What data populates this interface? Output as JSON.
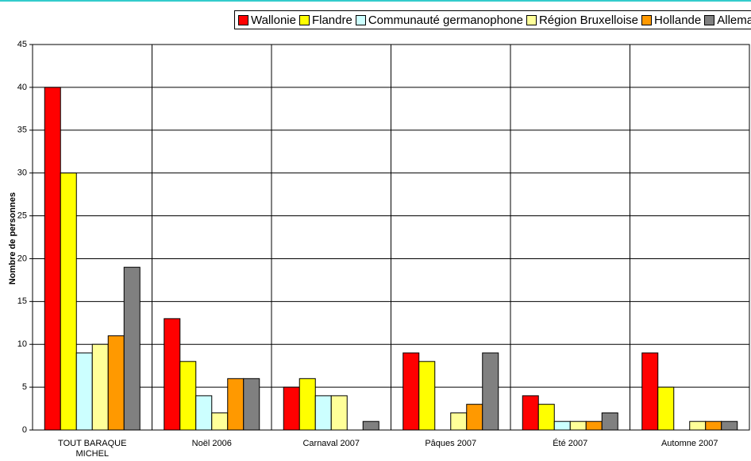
{
  "chart_data": {
    "type": "bar",
    "y_label": "Nombre de personnes",
    "categories": [
      "TOUT BARAQUE MICHEL",
      "Noël 2006",
      "Carnaval 2007",
      "Pâques 2007",
      "Été 2007",
      "Automne 2007"
    ],
    "series": [
      {
        "name": "Wallonie",
        "color": "#ff0000",
        "values": [
          40,
          13,
          5,
          9,
          4,
          9
        ]
      },
      {
        "name": "Flandre",
        "color": "#ffff00",
        "values": [
          30,
          8,
          6,
          8,
          3,
          5
        ]
      },
      {
        "name": "Communauté germanophone",
        "color": "#ccffff",
        "values": [
          9,
          4,
          4,
          0,
          1,
          0
        ]
      },
      {
        "name": "Région Bruxelloise",
        "color": "#ffff99",
        "values": [
          10,
          2,
          4,
          2,
          1,
          1
        ]
      },
      {
        "name": "Hollande",
        "color": "#ff9900",
        "values": [
          11,
          6,
          0,
          3,
          1,
          1
        ]
      },
      {
        "name": "Allemagne",
        "color": "#808080",
        "values": [
          19,
          6,
          1,
          9,
          2,
          1
        ]
      }
    ],
    "ylim": [
      0,
      45
    ],
    "yticks": [
      0,
      5,
      10,
      15,
      20,
      25,
      30,
      35,
      40,
      45
    ],
    "grid": true,
    "legend": "top"
  }
}
